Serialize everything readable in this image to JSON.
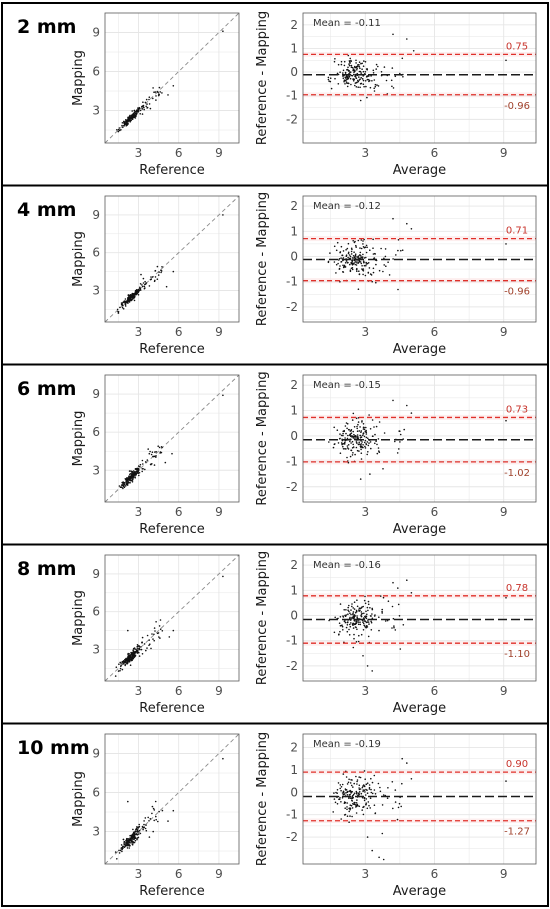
{
  "figure": {
    "colors": {
      "panel_bg": "#ffffff",
      "grid": "#e6e6e6",
      "border": "#5a5a5a",
      "point": "#111111",
      "identity_line": "#8a8a8a",
      "mean_line": "#1a1a1a",
      "loa_line": "#e0302a",
      "loa_band": "#fdeeee",
      "loa_label": "#c8332b",
      "loa_label_lower": "#a0422c",
      "axis_text": "#4d4d4d",
      "axis_title": "#1a1a1a"
    }
  },
  "chart_data": [
    {
      "type": "scatter",
      "panel_label": "2 mm",
      "scatter": {
        "xlabel": "Reference",
        "ylabel": "Mapping",
        "xlim": [
          0.5,
          10.5
        ],
        "ylim": [
          0.5,
          10.5
        ],
        "ticks": [
          3,
          6,
          9
        ],
        "seed": 11,
        "spread": 0.35,
        "outliers": [
          [
            5.6,
            4.9
          ],
          [
            5.2,
            4.2
          ],
          [
            9.3,
            9.1
          ],
          [
            4.3,
            3.8
          ]
        ]
      },
      "bland_altman": {
        "xlabel": "Average",
        "ylabel": "Reference - Mapping",
        "xlim": [
          0.3,
          10.4
        ],
        "ylim": [
          -3.0,
          2.5
        ],
        "xticks": [
          3,
          6,
          9
        ],
        "yticks": [
          -2,
          -1,
          0,
          1,
          2
        ],
        "mean": -0.11,
        "upper_loa": 0.75,
        "lower_loa": -0.96,
        "mean_label": "Mean = -0.11",
        "upper_label": "0.75",
        "lower_label": "-0.96",
        "seed": 21,
        "sd": 0.42,
        "outliers": [
          [
            4.2,
            1.6
          ],
          [
            4.8,
            1.4
          ],
          [
            5.1,
            0.9
          ],
          [
            9.1,
            0.5
          ],
          [
            3.4,
            -0.8
          ],
          [
            2.8,
            -1.2
          ]
        ]
      }
    },
    {
      "type": "scatter",
      "panel_label": "4 mm",
      "scatter": {
        "xlabel": "Reference",
        "ylabel": "Mapping",
        "xlim": [
          0.5,
          10.5
        ],
        "ylim": [
          0.5,
          10.5
        ],
        "ticks": [
          3,
          6,
          9
        ],
        "seed": 12,
        "spread": 0.35,
        "outliers": [
          [
            5.6,
            4.5
          ],
          [
            5.1,
            3.3
          ],
          [
            9.3,
            9.0
          ],
          [
            4.4,
            3.9
          ]
        ]
      },
      "bland_altman": {
        "xlabel": "Average",
        "ylabel": "Reference - Mapping",
        "xlim": [
          0.3,
          10.4
        ],
        "ylim": [
          -2.6,
          2.4
        ],
        "xticks": [
          3,
          6,
          9
        ],
        "yticks": [
          -2,
          -1,
          0,
          1,
          2
        ],
        "mean": -0.12,
        "upper_loa": 0.71,
        "lower_loa": -0.96,
        "mean_label": "Mean = -0.12",
        "upper_label": "0.71",
        "lower_label": "-0.96",
        "seed": 22,
        "sd": 0.42,
        "outliers": [
          [
            4.2,
            1.5
          ],
          [
            4.8,
            1.3
          ],
          [
            5.0,
            1.1
          ],
          [
            9.1,
            0.5
          ],
          [
            3.3,
            -1.0
          ],
          [
            2.7,
            -1.3
          ]
        ]
      }
    },
    {
      "type": "scatter",
      "panel_label": "6 mm",
      "scatter": {
        "xlabel": "Reference",
        "ylabel": "Mapping",
        "xlim": [
          0.5,
          10.5
        ],
        "ylim": [
          0.5,
          10.5
        ],
        "ticks": [
          3,
          6,
          9
        ],
        "seed": 13,
        "spread": 0.4,
        "outliers": [
          [
            5.5,
            4.3
          ],
          [
            5.0,
            3.6
          ],
          [
            9.3,
            8.9
          ],
          [
            4.2,
            4.1
          ]
        ]
      },
      "bland_altman": {
        "xlabel": "Average",
        "ylabel": "Reference - Mapping",
        "xlim": [
          0.3,
          10.4
        ],
        "ylim": [
          -2.6,
          2.4
        ],
        "xticks": [
          3,
          6,
          9
        ],
        "yticks": [
          -2,
          -1,
          0,
          1,
          2
        ],
        "mean": -0.15,
        "upper_loa": 0.73,
        "lower_loa": -1.02,
        "mean_label": "Mean = -0.15",
        "upper_label": "0.73",
        "lower_label": "-1.02",
        "seed": 23,
        "sd": 0.45,
        "outliers": [
          [
            4.2,
            1.4
          ],
          [
            4.8,
            1.2
          ],
          [
            5.0,
            0.9
          ],
          [
            9.1,
            0.6
          ],
          [
            3.2,
            -1.5
          ],
          [
            2.8,
            -1.7
          ]
        ]
      }
    },
    {
      "type": "scatter",
      "panel_label": "8 mm",
      "scatter": {
        "xlabel": "Reference",
        "ylabel": "Mapping",
        "xlim": [
          0.5,
          10.5
        ],
        "ylim": [
          0.5,
          10.5
        ],
        "ticks": [
          3,
          6,
          9
        ],
        "seed": 14,
        "spread": 0.45,
        "outliers": [
          [
            5.6,
            4.5
          ],
          [
            5.3,
            4.0
          ],
          [
            9.3,
            8.8
          ],
          [
            2.2,
            4.5
          ]
        ]
      },
      "bland_altman": {
        "xlabel": "Average",
        "ylabel": "Reference - Mapping",
        "xlim": [
          0.3,
          10.4
        ],
        "ylim": [
          -2.6,
          2.4
        ],
        "xticks": [
          3,
          6,
          9
        ],
        "yticks": [
          -2,
          -1,
          0,
          1,
          2
        ],
        "mean": -0.16,
        "upper_loa": 0.78,
        "lower_loa": -1.1,
        "mean_label": "Mean = -0.16",
        "upper_label": "0.78",
        "lower_label": "-1.10",
        "seed": 24,
        "sd": 0.5,
        "outliers": [
          [
            4.2,
            1.3
          ],
          [
            4.8,
            1.4
          ],
          [
            5.0,
            0.9
          ],
          [
            9.1,
            0.7
          ],
          [
            3.1,
            -2.0
          ],
          [
            3.3,
            -2.2
          ],
          [
            2.9,
            -1.6
          ]
        ]
      }
    },
    {
      "type": "scatter",
      "panel_label": "10 mm",
      "scatter": {
        "xlabel": "Reference",
        "ylabel": "Mapping",
        "xlim": [
          0.5,
          10.5
        ],
        "ylim": [
          0.5,
          10.5
        ],
        "ticks": [
          3,
          6,
          9
        ],
        "seed": 15,
        "spread": 0.5,
        "outliers": [
          [
            5.6,
            4.6
          ],
          [
            5.2,
            3.8
          ],
          [
            9.3,
            8.6
          ],
          [
            2.2,
            5.3
          ]
        ]
      },
      "bland_altman": {
        "xlabel": "Average",
        "ylabel": "Reference - Mapping",
        "xlim": [
          0.3,
          10.4
        ],
        "ylim": [
          -3.2,
          2.6
        ],
        "xticks": [
          3,
          6,
          9
        ],
        "yticks": [
          -2,
          -1,
          0,
          1,
          2
        ],
        "mean": -0.19,
        "upper_loa": 0.9,
        "lower_loa": -1.27,
        "mean_label": "Mean = -0.19",
        "upper_label": "0.90",
        "lower_label": "-1.27",
        "seed": 25,
        "sd": 0.55,
        "outliers": [
          [
            4.6,
            1.5
          ],
          [
            4.8,
            1.3
          ],
          [
            5.0,
            0.6
          ],
          [
            9.1,
            0.5
          ],
          [
            3.3,
            -2.6
          ],
          [
            3.6,
            -2.9
          ],
          [
            3.8,
            -3.0
          ],
          [
            3.1,
            -2.0
          ]
        ]
      }
    }
  ]
}
